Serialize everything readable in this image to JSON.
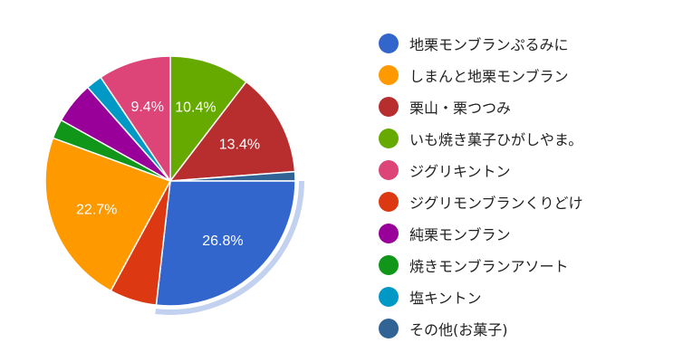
{
  "chart_data": {
    "type": "pie",
    "start_angle": "12 o'clock, clockwise",
    "highlighted_slice": "地栗モンブランぷるみに",
    "legend_position": "right",
    "slices": [
      {
        "label": "いも焼き菓子ひがしやま。",
        "value": 10.4,
        "color": "#66aa00",
        "data_label": "10.4%"
      },
      {
        "label": "栗山・栗つつみ",
        "value": 13.4,
        "color": "#b82e2e",
        "data_label": "13.4%"
      },
      {
        "label": "その他(お菓子)",
        "value": 1.2,
        "color": "#316395",
        "data_label": ""
      },
      {
        "label": "地栗モンブランぷるみに",
        "value": 26.8,
        "color": "#3366cc",
        "data_label": "26.8%"
      },
      {
        "label": "ジグリモンブランくりどけ",
        "value": 6.1,
        "color": "#dc3912",
        "data_label": ""
      },
      {
        "label": "しまんと地栗モンブラン",
        "value": 22.7,
        "color": "#ff9900",
        "data_label": "22.7%"
      },
      {
        "label": "焼きモンブランアソート",
        "value": 2.5,
        "color": "#109618",
        "data_label": ""
      },
      {
        "label": "純栗モンブラン",
        "value": 5.4,
        "color": "#990099",
        "data_label": ""
      },
      {
        "label": "塩キントン",
        "value": 2.1,
        "color": "#0099c6",
        "data_label": ""
      },
      {
        "label": "ジグリキントン",
        "value": 9.4,
        "color": "#dd4477",
        "data_label": "9.4%"
      }
    ],
    "legend": [
      {
        "label": "地栗モンブランぷるみに",
        "color": "#3366cc"
      },
      {
        "label": "しまんと地栗モンブラン",
        "color": "#ff9900"
      },
      {
        "label": "栗山・栗つつみ",
        "color": "#b82e2e"
      },
      {
        "label": "いも焼き菓子ひがしやま。",
        "color": "#66aa00"
      },
      {
        "label": "ジグリキントン",
        "color": "#dd4477"
      },
      {
        "label": "ジグリモンブランくりどけ",
        "color": "#dc3912"
      },
      {
        "label": "純栗モンブラン",
        "color": "#990099"
      },
      {
        "label": "焼きモンブランアソート",
        "color": "#109618"
      },
      {
        "label": "塩キントン",
        "color": "#0099c6"
      },
      {
        "label": "その他(お菓子)",
        "color": "#316395"
      }
    ]
  }
}
